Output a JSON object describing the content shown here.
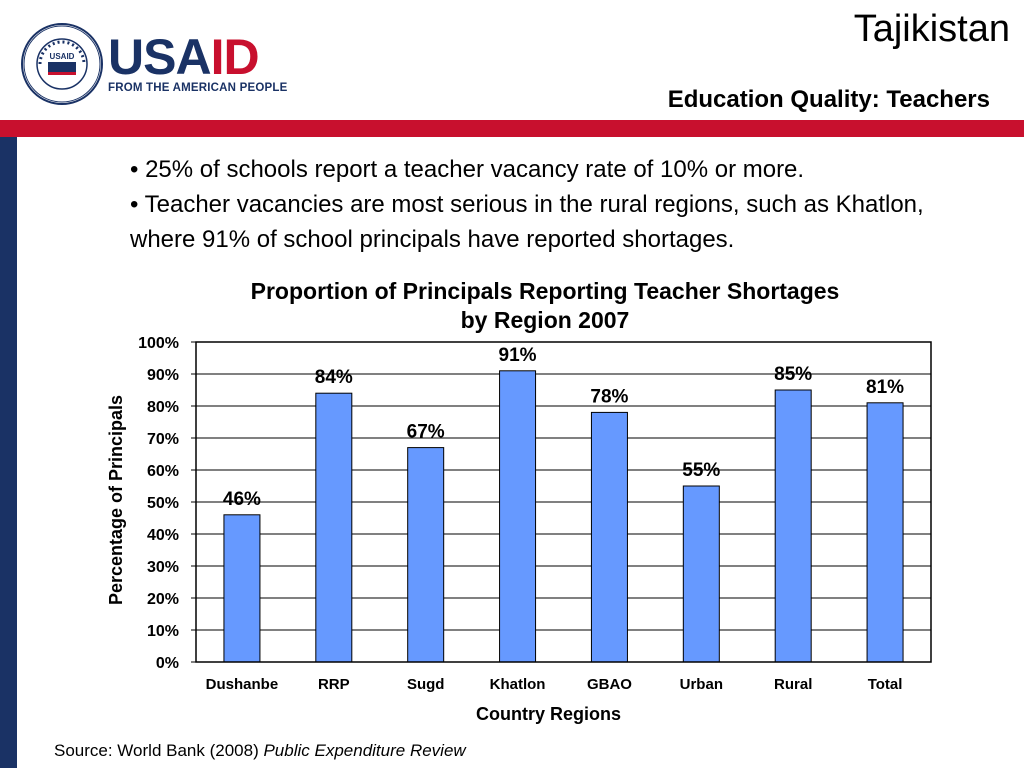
{
  "header": {
    "logo_text_usa": "USA",
    "logo_text_id": "ID",
    "logo_tagline": "FROM THE AMERICAN PEOPLE",
    "seal_text": "UNITED STATES AGENCY • INTERNATIONAL DEVELOPMENT •",
    "seal_center": "USAID",
    "country": "Tajikistan",
    "title": "Education Quality: Teachers"
  },
  "bullets": [
    "• 25% of schools report a teacher vacancy rate of 10% or more.",
    "• Teacher vacancies are most serious in the rural regions, such as Khatlon, where 91% of school principals have reported shortages."
  ],
  "source": {
    "prefix": "Source: World Bank (2008) ",
    "title": "Public Expenditure Review"
  },
  "colors": {
    "bar": "#6699ff",
    "navy": "#1a3265",
    "red": "#c8102e"
  },
  "chart_data": {
    "type": "bar",
    "title_line1": "Proportion of Principals Reporting Teacher Shortages",
    "title_line2": "by Region 2007",
    "categories": [
      "Dushanbe",
      "RRP",
      "Sugd",
      "Khatlon",
      "GBAO",
      "Urban",
      "Rural",
      "Total"
    ],
    "values": [
      46,
      84,
      67,
      91,
      78,
      55,
      85,
      81
    ],
    "value_labels": [
      "46%",
      "84%",
      "67%",
      "91%",
      "78%",
      "55%",
      "85%",
      "81%"
    ],
    "xlabel": "Country Regions",
    "ylabel": "Percentage of Principals",
    "ylim": [
      0,
      100
    ],
    "yticks": [
      "0%",
      "10%",
      "20%",
      "30%",
      "40%",
      "50%",
      "60%",
      "70%",
      "80%",
      "90%",
      "100%"
    ],
    "grid": true,
    "legend": "none"
  }
}
